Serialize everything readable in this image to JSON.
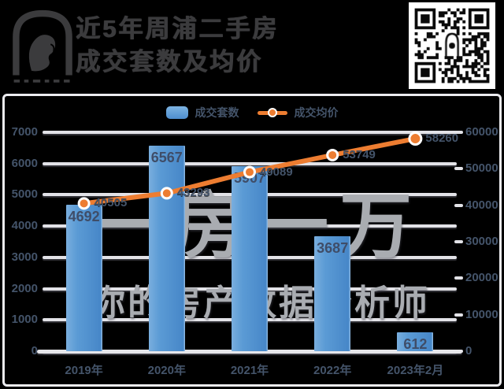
{
  "header": {
    "title_line1": "近5年周浦二手房",
    "title_line2": "成交套数及均价"
  },
  "chart_data": {
    "type": "bar+line",
    "categories": [
      "2019年",
      "2020年",
      "2021年",
      "2022年",
      "2023年2月"
    ],
    "series": [
      {
        "name": "成交套数",
        "type": "bar",
        "axis": "left",
        "color": "#5B9BD5",
        "values": [
          4692,
          6567,
          5907,
          3687,
          612
        ]
      },
      {
        "name": "成交均价",
        "type": "line",
        "axis": "right",
        "color": "#ED7D31",
        "values": [
          40505,
          43293,
          49089,
          53749,
          58260
        ]
      }
    ],
    "left_axis": {
      "min": 0,
      "max": 7000,
      "step": 1000,
      "ticks": [
        "0",
        "1000",
        "2000",
        "3000",
        "4000",
        "5000",
        "6000",
        "7000"
      ]
    },
    "right_axis": {
      "min": 0,
      "max": 60000,
      "step": 10000,
      "ticks": [
        "0",
        "10000",
        "20000",
        "30000",
        "40000",
        "50000",
        "60000"
      ]
    },
    "legend": {
      "position": "top-center",
      "items": [
        "成交套数",
        "成交均价"
      ]
    },
    "grid": true,
    "watermark": {
      "line1": "一房一万",
      "line2": "你的房产数据分析师"
    }
  },
  "colors": {
    "background": "#000000",
    "bar": "#5B9BD5",
    "line": "#ED7D31",
    "label": "#44546A",
    "grid": "#e2e2e7",
    "panel_border": "#ececf0",
    "watermark": "#a9acb1",
    "title": "#3b3b3d"
  }
}
